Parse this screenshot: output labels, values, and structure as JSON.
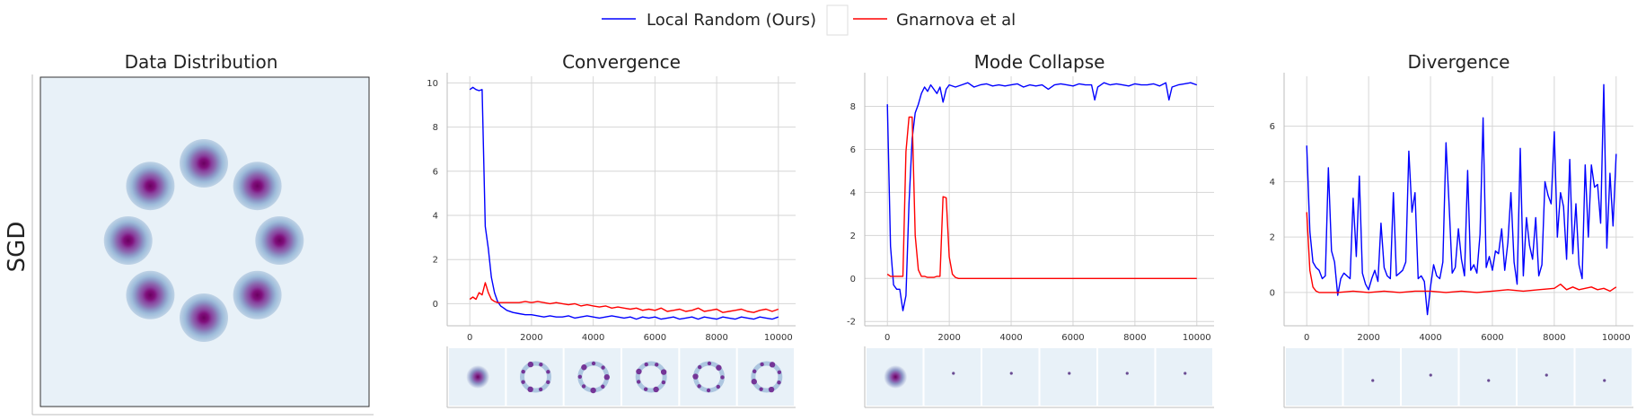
{
  "row_label": "SGD",
  "legend": [
    {
      "label": "Local Random (Ours)",
      "color": "#0000ff"
    },
    {
      "label": "Gnarnova et al",
      "color": "#ff0000"
    }
  ],
  "panels": {
    "data_distribution": {
      "title": "Data Distribution",
      "mode_count": 8,
      "colormap": "BuPu"
    }
  },
  "chart_data": [
    {
      "type": "line",
      "title": "Convergence",
      "xlim": [
        -500,
        10500
      ],
      "ylim": [
        -1,
        10.3
      ],
      "xticks": [
        0,
        2000,
        4000,
        6000,
        8000,
        10000
      ],
      "yticks": [
        0,
        2,
        4,
        6,
        8,
        10
      ],
      "series": [
        {
          "name": "Local Random (Ours)",
          "color": "#0000ff",
          "x": [
            0,
            100,
            200,
            300,
            400,
            500,
            600,
            700,
            800,
            900,
            1000,
            1100,
            1200,
            1400,
            1600,
            1800,
            2000,
            2200,
            2400,
            2600,
            2800,
            3000,
            3200,
            3400,
            3600,
            3800,
            4000,
            4200,
            4400,
            4600,
            4800,
            5000,
            5200,
            5400,
            5600,
            5800,
            6000,
            6200,
            6400,
            6600,
            6800,
            7000,
            7200,
            7400,
            7600,
            7800,
            8000,
            8200,
            8400,
            8600,
            8800,
            9000,
            9200,
            9400,
            9600,
            9800,
            10000
          ],
          "y": [
            9.7,
            9.8,
            9.7,
            9.65,
            9.7,
            3.5,
            2.5,
            1.2,
            0.5,
            0.1,
            -0.1,
            -0.2,
            -0.3,
            -0.4,
            -0.45,
            -0.5,
            -0.5,
            -0.55,
            -0.6,
            -0.55,
            -0.6,
            -0.6,
            -0.55,
            -0.65,
            -0.6,
            -0.55,
            -0.6,
            -0.65,
            -0.6,
            -0.55,
            -0.6,
            -0.65,
            -0.6,
            -0.7,
            -0.6,
            -0.65,
            -0.6,
            -0.7,
            -0.65,
            -0.6,
            -0.7,
            -0.65,
            -0.6,
            -0.7,
            -0.6,
            -0.65,
            -0.7,
            -0.6,
            -0.65,
            -0.7,
            -0.6,
            -0.65,
            -0.7,
            -0.6,
            -0.65,
            -0.7,
            -0.6
          ]
        },
        {
          "name": "Gnarnova et al",
          "color": "#ff0000",
          "x": [
            0,
            100,
            200,
            300,
            400,
            500,
            600,
            700,
            800,
            900,
            1000,
            1100,
            1200,
            1400,
            1600,
            1800,
            2000,
            2200,
            2400,
            2600,
            2800,
            3000,
            3200,
            3400,
            3600,
            3800,
            4000,
            4200,
            4400,
            4600,
            4800,
            5000,
            5200,
            5400,
            5600,
            5800,
            6000,
            6200,
            6400,
            6600,
            6800,
            7000,
            7200,
            7400,
            7600,
            7800,
            8000,
            8200,
            8400,
            8600,
            8800,
            9000,
            9200,
            9400,
            9600,
            9800,
            10000
          ],
          "y": [
            0.2,
            0.3,
            0.2,
            0.5,
            0.4,
            0.95,
            0.5,
            0.2,
            0.1,
            0.05,
            0.05,
            0.05,
            0.05,
            0.05,
            0.05,
            0.1,
            0.05,
            0.1,
            0.05,
            0.0,
            0.05,
            0.0,
            -0.05,
            0.0,
            -0.1,
            -0.05,
            -0.1,
            -0.15,
            -0.1,
            -0.2,
            -0.15,
            -0.2,
            -0.25,
            -0.2,
            -0.3,
            -0.25,
            -0.3,
            -0.2,
            -0.35,
            -0.3,
            -0.25,
            -0.35,
            -0.3,
            -0.2,
            -0.35,
            -0.3,
            -0.25,
            -0.4,
            -0.35,
            -0.3,
            -0.25,
            -0.35,
            -0.4,
            -0.3,
            -0.25,
            -0.35,
            -0.25
          ]
        }
      ],
      "snapshots": [
        "blob",
        "ring",
        "ring",
        "ring",
        "ring",
        "ring"
      ]
    },
    {
      "type": "line",
      "title": "Mode Collapse",
      "xlim": [
        -500,
        10500
      ],
      "ylim": [
        -2.2,
        9.4
      ],
      "xticks": [
        0,
        2000,
        4000,
        6000,
        8000,
        10000
      ],
      "yticks": [
        -2,
        0,
        2,
        4,
        6,
        8
      ],
      "series": [
        {
          "name": "Local Random (Ours)",
          "color": "#0000ff",
          "x": [
            0,
            100,
            200,
            300,
            400,
            500,
            600,
            700,
            800,
            900,
            1000,
            1100,
            1200,
            1300,
            1400,
            1500,
            1600,
            1700,
            1800,
            1900,
            2000,
            2200,
            2400,
            2600,
            2800,
            3000,
            3200,
            3400,
            3600,
            3800,
            4000,
            4200,
            4400,
            4600,
            4800,
            5000,
            5200,
            5400,
            5600,
            5800,
            6000,
            6200,
            6400,
            6600,
            6700,
            6800,
            6900,
            7000,
            7200,
            7400,
            7600,
            7800,
            8000,
            8200,
            8400,
            8600,
            8800,
            9000,
            9100,
            9200,
            9400,
            9600,
            9800,
            10000
          ],
          "y": [
            8.1,
            1.5,
            -0.3,
            -0.5,
            -0.5,
            -1.5,
            -0.8,
            3.5,
            6.5,
            7.7,
            8.1,
            8.6,
            8.9,
            8.7,
            9.0,
            8.8,
            8.6,
            8.9,
            8.2,
            8.8,
            9.0,
            8.9,
            9.0,
            9.1,
            8.9,
            9.0,
            9.05,
            8.95,
            9.0,
            8.95,
            9.0,
            9.05,
            8.9,
            9.0,
            8.95,
            9.0,
            8.8,
            9.0,
            9.05,
            9.0,
            8.95,
            9.05,
            9.0,
            9.0,
            8.3,
            8.9,
            9.0,
            9.1,
            9.0,
            9.05,
            9.0,
            8.95,
            9.05,
            9.0,
            9.0,
            9.05,
            8.95,
            9.1,
            8.3,
            8.9,
            9.0,
            9.05,
            9.1,
            9.0
          ]
        },
        {
          "name": "Gnarnova et al",
          "color": "#ff0000",
          "x": [
            0,
            100,
            200,
            300,
            400,
            500,
            600,
            700,
            800,
            900,
            1000,
            1100,
            1200,
            1300,
            1400,
            1500,
            1600,
            1700,
            1800,
            1900,
            2000,
            2100,
            2200,
            2300,
            2400,
            2600,
            2800,
            3000,
            3500,
            4000,
            4500,
            5000,
            5500,
            6000,
            6500,
            7000,
            7500,
            8000,
            8500,
            9000,
            9500,
            10000
          ],
          "y": [
            0.2,
            0.1,
            0.1,
            0.1,
            0.1,
            0.1,
            5.9,
            7.5,
            7.5,
            2.0,
            0.4,
            0.1,
            0.1,
            0.05,
            0.05,
            0.05,
            0.1,
            0.1,
            3.8,
            3.75,
            1.0,
            0.2,
            0.05,
            0.0,
            0.0,
            0.0,
            0.0,
            0.0,
            0.0,
            0.0,
            0.0,
            0.0,
            0.0,
            0.0,
            0.0,
            0.0,
            0.0,
            0.0,
            0.0,
            0.0,
            0.0,
            0.0
          ]
        }
      ],
      "snapshots": [
        "blob",
        "dot",
        "dot",
        "dot",
        "dot",
        "dot"
      ]
    },
    {
      "type": "line",
      "title": "Divergence",
      "xlim": [
        -500,
        10500
      ],
      "ylim": [
        -1.2,
        7.8
      ],
      "xticks": [
        0,
        2000,
        4000,
        6000,
        8000,
        10000
      ],
      "yticks": [
        0,
        2,
        4,
        6
      ],
      "series": [
        {
          "name": "Local Random (Ours)",
          "color": "#0000ff",
          "x": [
            0,
            100,
            200,
            300,
            400,
            500,
            600,
            700,
            800,
            900,
            1000,
            1100,
            1200,
            1300,
            1400,
            1500,
            1600,
            1700,
            1800,
            1900,
            2000,
            2100,
            2200,
            2300,
            2400,
            2500,
            2600,
            2700,
            2800,
            2900,
            3000,
            3100,
            3200,
            3300,
            3400,
            3500,
            3600,
            3700,
            3800,
            3900,
            4000,
            4100,
            4200,
            4300,
            4400,
            4500,
            4600,
            4700,
            4800,
            4900,
            5000,
            5100,
            5200,
            5300,
            5400,
            5500,
            5600,
            5700,
            5800,
            5900,
            6000,
            6100,
            6200,
            6300,
            6400,
            6500,
            6600,
            6700,
            6800,
            6900,
            7000,
            7100,
            7200,
            7300,
            7400,
            7500,
            7600,
            7700,
            7800,
            7900,
            8000,
            8100,
            8200,
            8300,
            8400,
            8500,
            8600,
            8700,
            8800,
            8900,
            9000,
            9100,
            9200,
            9300,
            9400,
            9500,
            9600,
            9700,
            9800,
            9900,
            10000
          ],
          "y": [
            5.3,
            2.2,
            1.1,
            0.9,
            0.8,
            0.5,
            0.6,
            4.5,
            1.5,
            1.1,
            -0.1,
            0.5,
            0.7,
            0.6,
            0.5,
            3.4,
            1.3,
            4.2,
            0.7,
            0.3,
            0.1,
            0.5,
            0.8,
            0.4,
            2.5,
            0.9,
            0.6,
            0.5,
            3.6,
            0.6,
            0.7,
            0.8,
            1.1,
            5.1,
            2.9,
            3.6,
            0.5,
            0.6,
            0.4,
            -0.8,
            0.2,
            1.0,
            0.6,
            0.5,
            1.1,
            5.4,
            3.2,
            0.7,
            0.9,
            2.3,
            1.2,
            0.6,
            4.4,
            0.8,
            1.0,
            0.7,
            2.1,
            6.3,
            0.9,
            1.3,
            0.8,
            1.5,
            1.4,
            2.3,
            0.8,
            1.8,
            3.6,
            1.1,
            0.3,
            5.2,
            0.6,
            2.7,
            1.7,
            1.2,
            2.7,
            0.6,
            1.0,
            4.0,
            3.5,
            3.2,
            5.8,
            2.0,
            3.6,
            3.1,
            1.2,
            4.8,
            1.4,
            3.2,
            1.0,
            0.5,
            4.6,
            2.0,
            4.6,
            3.8,
            3.9,
            2.5,
            7.5,
            1.6,
            4.3,
            2.4,
            5.0
          ]
        },
        {
          "name": "Gnarnova et al",
          "color": "#ff0000",
          "x": [
            0,
            100,
            200,
            300,
            400,
            600,
            800,
            1000,
            1500,
            2000,
            2500,
            3000,
            3500,
            4000,
            4500,
            5000,
            5500,
            6000,
            6500,
            7000,
            7500,
            8000,
            8200,
            8400,
            8600,
            8800,
            9000,
            9200,
            9400,
            9600,
            9800,
            10000
          ],
          "y": [
            2.9,
            0.8,
            0.2,
            0.05,
            0.0,
            0.0,
            0.0,
            0.0,
            0.05,
            0.0,
            0.05,
            0.0,
            0.05,
            0.05,
            0.0,
            0.05,
            0.0,
            0.05,
            0.1,
            0.05,
            0.1,
            0.15,
            0.3,
            0.1,
            0.2,
            0.1,
            0.15,
            0.2,
            0.1,
            0.15,
            0.05,
            0.2
          ]
        }
      ],
      "snapshots": [
        "empty",
        "dot",
        "dot",
        "dot",
        "dot",
        "dot"
      ]
    }
  ]
}
